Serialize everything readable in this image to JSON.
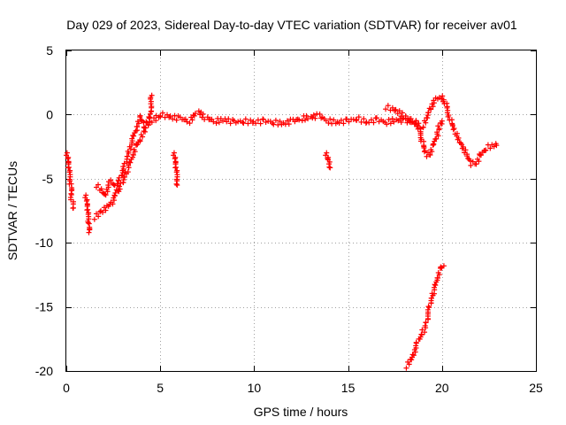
{
  "chart_data": {
    "type": "scatter",
    "title": "Day 029 of 2023, Sidereal Day-to-day VTEC variation (SDTVAR) for receiver av01",
    "xlabel": "GPS time / hours",
    "ylabel": "SDTVAR / TECUs",
    "xlim": [
      0,
      25
    ],
    "ylim": [
      -20,
      5
    ],
    "xticks": [
      0,
      5,
      10,
      15,
      20,
      25
    ],
    "xtick_labels": [
      "0",
      "5",
      "10",
      "15",
      "20",
      "25"
    ],
    "yticks": [
      5,
      0,
      -5,
      -10,
      -15,
      -20
    ],
    "ytick_labels": [
      "5",
      "0",
      "-5",
      "-10",
      "-15",
      "-20"
    ],
    "grid": true,
    "marker": "+",
    "series": [
      {
        "name": "SDTVAR",
        "color": "#ff0000",
        "segments": [
          [
            [
              0.0,
              -3.0
            ],
            [
              0.1,
              -4.2
            ],
            [
              0.2,
              -5.5
            ],
            [
              0.3,
              -6.8
            ],
            [
              0.35,
              -7.3
            ]
          ],
          [
            [
              1.0,
              -6.3
            ],
            [
              1.1,
              -7.5
            ],
            [
              1.15,
              -8.6
            ],
            [
              1.2,
              -9.2
            ]
          ],
          [
            [
              1.5,
              -8.0
            ],
            [
              1.8,
              -7.6
            ],
            [
              2.1,
              -7.2
            ],
            [
              2.4,
              -6.8
            ],
            [
              2.7,
              -6.0
            ],
            [
              3.0,
              -5.4
            ],
            [
              3.3,
              -4.3
            ],
            [
              3.6,
              -3.2
            ],
            [
              3.8,
              -2.4
            ],
            [
              4.0,
              -1.9
            ],
            [
              4.2,
              -1.1
            ],
            [
              4.4,
              -0.3
            ],
            [
              4.55,
              1.5
            ]
          ],
          [
            [
              1.6,
              -5.5
            ],
            [
              2.0,
              -6.3
            ],
            [
              2.3,
              -5.2
            ],
            [
              2.6,
              -5.7
            ],
            [
              2.9,
              -4.8
            ],
            [
              3.2,
              -3.8
            ],
            [
              3.5,
              -2.2
            ],
            [
              3.8,
              -1.0
            ],
            [
              4.0,
              -0.2
            ],
            [
              4.2,
              -0.8
            ],
            [
              4.5,
              -0.6
            ],
            [
              4.8,
              -0.2
            ],
            [
              5.0,
              -0.1
            ]
          ],
          [
            [
              5.7,
              -3.0
            ],
            [
              5.8,
              -4.2
            ],
            [
              5.9,
              -5.5
            ]
          ],
          [
            [
              5.0,
              0.0
            ],
            [
              5.5,
              -0.2
            ],
            [
              6.0,
              -0.3
            ],
            [
              6.5,
              -0.5
            ],
            [
              7.0,
              0.2
            ],
            [
              7.5,
              -0.3
            ],
            [
              8.0,
              -0.5
            ],
            [
              8.5,
              -0.4
            ],
            [
              9.0,
              -0.6
            ],
            [
              9.5,
              -0.5
            ],
            [
              10.0,
              -0.6
            ],
            [
              10.5,
              -0.5
            ],
            [
              11.0,
              -0.6
            ],
            [
              11.5,
              -0.7
            ],
            [
              12.0,
              -0.5
            ],
            [
              12.5,
              -0.3
            ],
            [
              13.0,
              -0.2
            ],
            [
              13.5,
              -0.1
            ],
            [
              14.0,
              -0.5
            ],
            [
              14.5,
              -0.6
            ],
            [
              15.0,
              -0.5
            ],
            [
              15.5,
              -0.3
            ],
            [
              16.0,
              -0.6
            ],
            [
              16.5,
              -0.4
            ],
            [
              17.0,
              -0.6
            ],
            [
              17.5,
              -0.4
            ],
            [
              18.0,
              -0.5
            ],
            [
              18.5,
              -0.6
            ],
            [
              19.0,
              -1.0
            ]
          ],
          [
            [
              13.8,
              -3.0
            ],
            [
              13.9,
              -3.6
            ],
            [
              14.0,
              -4.1
            ]
          ],
          [
            [
              17.0,
              0.6
            ],
            [
              17.5,
              0.3
            ],
            [
              18.0,
              -0.2
            ],
            [
              18.5,
              -0.5
            ],
            [
              18.8,
              -1.2
            ],
            [
              19.0,
              -2.2
            ],
            [
              19.2,
              -3.1
            ],
            [
              19.4,
              -3.2
            ],
            [
              19.6,
              -2.4
            ],
            [
              19.8,
              -1.2
            ],
            [
              20.0,
              -0.5
            ]
          ],
          [
            [
              19.0,
              -0.8
            ],
            [
              19.3,
              0.4
            ],
            [
              19.6,
              1.2
            ],
            [
              19.9,
              1.4
            ],
            [
              20.2,
              0.8
            ],
            [
              20.5,
              -0.5
            ],
            [
              20.8,
              -1.5
            ],
            [
              21.1,
              -2.4
            ],
            [
              21.4,
              -3.2
            ],
            [
              21.6,
              -3.8
            ],
            [
              21.8,
              -3.9
            ],
            [
              22.0,
              -3.2
            ],
            [
              22.3,
              -2.6
            ],
            [
              22.6,
              -2.4
            ],
            [
              22.9,
              -2.4
            ]
          ],
          [
            [
              18.1,
              -19.6
            ],
            [
              18.4,
              -18.8
            ],
            [
              18.7,
              -17.6
            ],
            [
              19.0,
              -16.8
            ],
            [
              19.2,
              -16.0
            ],
            [
              19.4,
              -14.8
            ],
            [
              19.6,
              -13.8
            ],
            [
              19.8,
              -12.8
            ],
            [
              20.0,
              -12.0
            ],
            [
              20.1,
              -11.8
            ]
          ]
        ]
      }
    ]
  }
}
